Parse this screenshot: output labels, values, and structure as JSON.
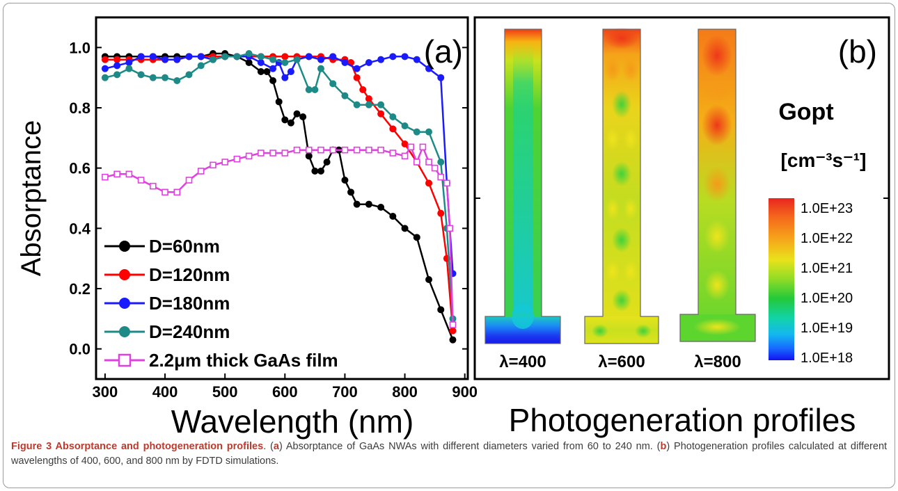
{
  "figure_number": "Figure 3",
  "figure_title": "Absorptance and photogeneration profiles",
  "caption": {
    "a_label": "a",
    "a_text": "Absorptance of GaAs NWAs with different diameters varied from 60 to 240 nm.",
    "b_label": "b",
    "b_text": "Photogeneration profiles calculated at different wavelengths of 400, 600, and 800 nm by FDTD simulations."
  },
  "panel_b": {
    "tag": "(b)",
    "xlabel": "Photogeneration profiles",
    "colorbar_title": "Gopt",
    "colorbar_unit": "[cm⁻³s⁻¹]",
    "colorbar_ticks": [
      "1.0E+23",
      "1.0E+22",
      "1.0E+21",
      "1.0E+20",
      "1.0E+19",
      "1.0E+18"
    ],
    "profiles": [
      {
        "label": "λ=400",
        "wavelength": 400
      },
      {
        "label": "λ=600",
        "wavelength": 600
      },
      {
        "label": "λ=800",
        "wavelength": 800
      }
    ]
  },
  "chart_data": {
    "type": "line",
    "panel": "(a)",
    "title": "",
    "xlabel": "Wavelength (nm)",
    "ylabel": "Absorptance",
    "xlim": [
      285,
      905
    ],
    "ylim": [
      -0.1,
      1.1
    ],
    "xticks": [
      300,
      400,
      500,
      600,
      700,
      800,
      900
    ],
    "yticks": [
      0.0,
      0.2,
      0.4,
      0.6,
      0.8,
      1.0
    ],
    "ytick_labels": [
      "0.0",
      "0.2",
      "0.4",
      "0.6",
      "0.8",
      "1.0"
    ],
    "legend_position": "bottom-left",
    "series": [
      {
        "name": "D=60nm",
        "color": "#000000",
        "marker": "filled-circle",
        "x": [
          300,
          320,
          340,
          360,
          380,
          400,
          420,
          440,
          460,
          480,
          500,
          520,
          540,
          560,
          570,
          580,
          590,
          600,
          610,
          620,
          630,
          640,
          650,
          660,
          670,
          680,
          690,
          700,
          710,
          720,
          740,
          760,
          780,
          800,
          820,
          840,
          860,
          880
        ],
        "y": [
          0.97,
          0.97,
          0.97,
          0.97,
          0.97,
          0.97,
          0.97,
          0.97,
          0.97,
          0.98,
          0.98,
          0.97,
          0.95,
          0.92,
          0.92,
          0.89,
          0.82,
          0.76,
          0.75,
          0.78,
          0.77,
          0.64,
          0.59,
          0.59,
          0.62,
          0.66,
          0.66,
          0.56,
          0.52,
          0.48,
          0.48,
          0.47,
          0.44,
          0.4,
          0.37,
          0.23,
          0.13,
          0.03
        ]
      },
      {
        "name": "D=120nm",
        "color": "#ff0000",
        "marker": "filled-circle",
        "x": [
          300,
          320,
          340,
          360,
          380,
          400,
          420,
          440,
          460,
          480,
          500,
          520,
          540,
          560,
          580,
          600,
          620,
          640,
          660,
          680,
          700,
          710,
          720,
          730,
          740,
          760,
          780,
          800,
          820,
          840,
          860,
          870,
          880
        ],
        "y": [
          0.96,
          0.96,
          0.96,
          0.96,
          0.96,
          0.96,
          0.96,
          0.97,
          0.97,
          0.97,
          0.97,
          0.97,
          0.97,
          0.97,
          0.97,
          0.97,
          0.97,
          0.97,
          0.97,
          0.96,
          0.96,
          0.95,
          0.9,
          0.86,
          0.83,
          0.78,
          0.73,
          0.68,
          0.62,
          0.55,
          0.45,
          0.3,
          0.06
        ]
      },
      {
        "name": "D=180nm",
        "color": "#1a1aff",
        "marker": "filled-circle",
        "x": [
          300,
          320,
          340,
          360,
          380,
          400,
          420,
          440,
          460,
          480,
          500,
          520,
          540,
          560,
          580,
          590,
          600,
          610,
          620,
          640,
          660,
          680,
          700,
          720,
          740,
          760,
          780,
          800,
          820,
          840,
          860,
          870,
          880
        ],
        "y": [
          0.93,
          0.94,
          0.95,
          0.97,
          0.97,
          0.96,
          0.96,
          0.97,
          0.97,
          0.96,
          0.97,
          0.97,
          0.97,
          0.95,
          0.93,
          0.95,
          0.9,
          0.92,
          0.96,
          0.97,
          0.96,
          0.97,
          0.95,
          0.93,
          0.95,
          0.96,
          0.97,
          0.97,
          0.96,
          0.93,
          0.9,
          0.55,
          0.25
        ]
      },
      {
        "name": "D=240nm",
        "color": "#1e8a87",
        "marker": "filled-circle",
        "x": [
          300,
          320,
          340,
          360,
          380,
          400,
          420,
          440,
          460,
          480,
          500,
          520,
          540,
          560,
          580,
          600,
          620,
          640,
          650,
          660,
          680,
          700,
          720,
          740,
          760,
          780,
          800,
          820,
          840,
          860,
          870,
          880
        ],
        "y": [
          0.9,
          0.91,
          0.93,
          0.91,
          0.9,
          0.9,
          0.89,
          0.91,
          0.94,
          0.96,
          0.97,
          0.97,
          0.98,
          0.97,
          0.96,
          0.95,
          0.96,
          0.86,
          0.86,
          0.93,
          0.88,
          0.84,
          0.81,
          0.81,
          0.81,
          0.77,
          0.74,
          0.72,
          0.72,
          0.62,
          0.4,
          0.1
        ]
      },
      {
        "name": "2.2μm thick GaAs film",
        "color": "#e040e0",
        "marker": "open-square",
        "x": [
          300,
          320,
          340,
          360,
          380,
          400,
          420,
          440,
          460,
          480,
          500,
          520,
          540,
          560,
          580,
          600,
          620,
          640,
          660,
          680,
          700,
          720,
          740,
          760,
          780,
          800,
          810,
          820,
          830,
          840,
          850,
          860,
          870,
          875,
          880
        ],
        "y": [
          0.57,
          0.58,
          0.58,
          0.56,
          0.54,
          0.52,
          0.52,
          0.56,
          0.59,
          0.61,
          0.62,
          0.63,
          0.64,
          0.65,
          0.65,
          0.65,
          0.66,
          0.66,
          0.66,
          0.66,
          0.66,
          0.66,
          0.66,
          0.66,
          0.65,
          0.64,
          0.67,
          0.62,
          0.67,
          0.62,
          0.6,
          0.57,
          0.55,
          0.4,
          0.08
        ]
      }
    ]
  }
}
